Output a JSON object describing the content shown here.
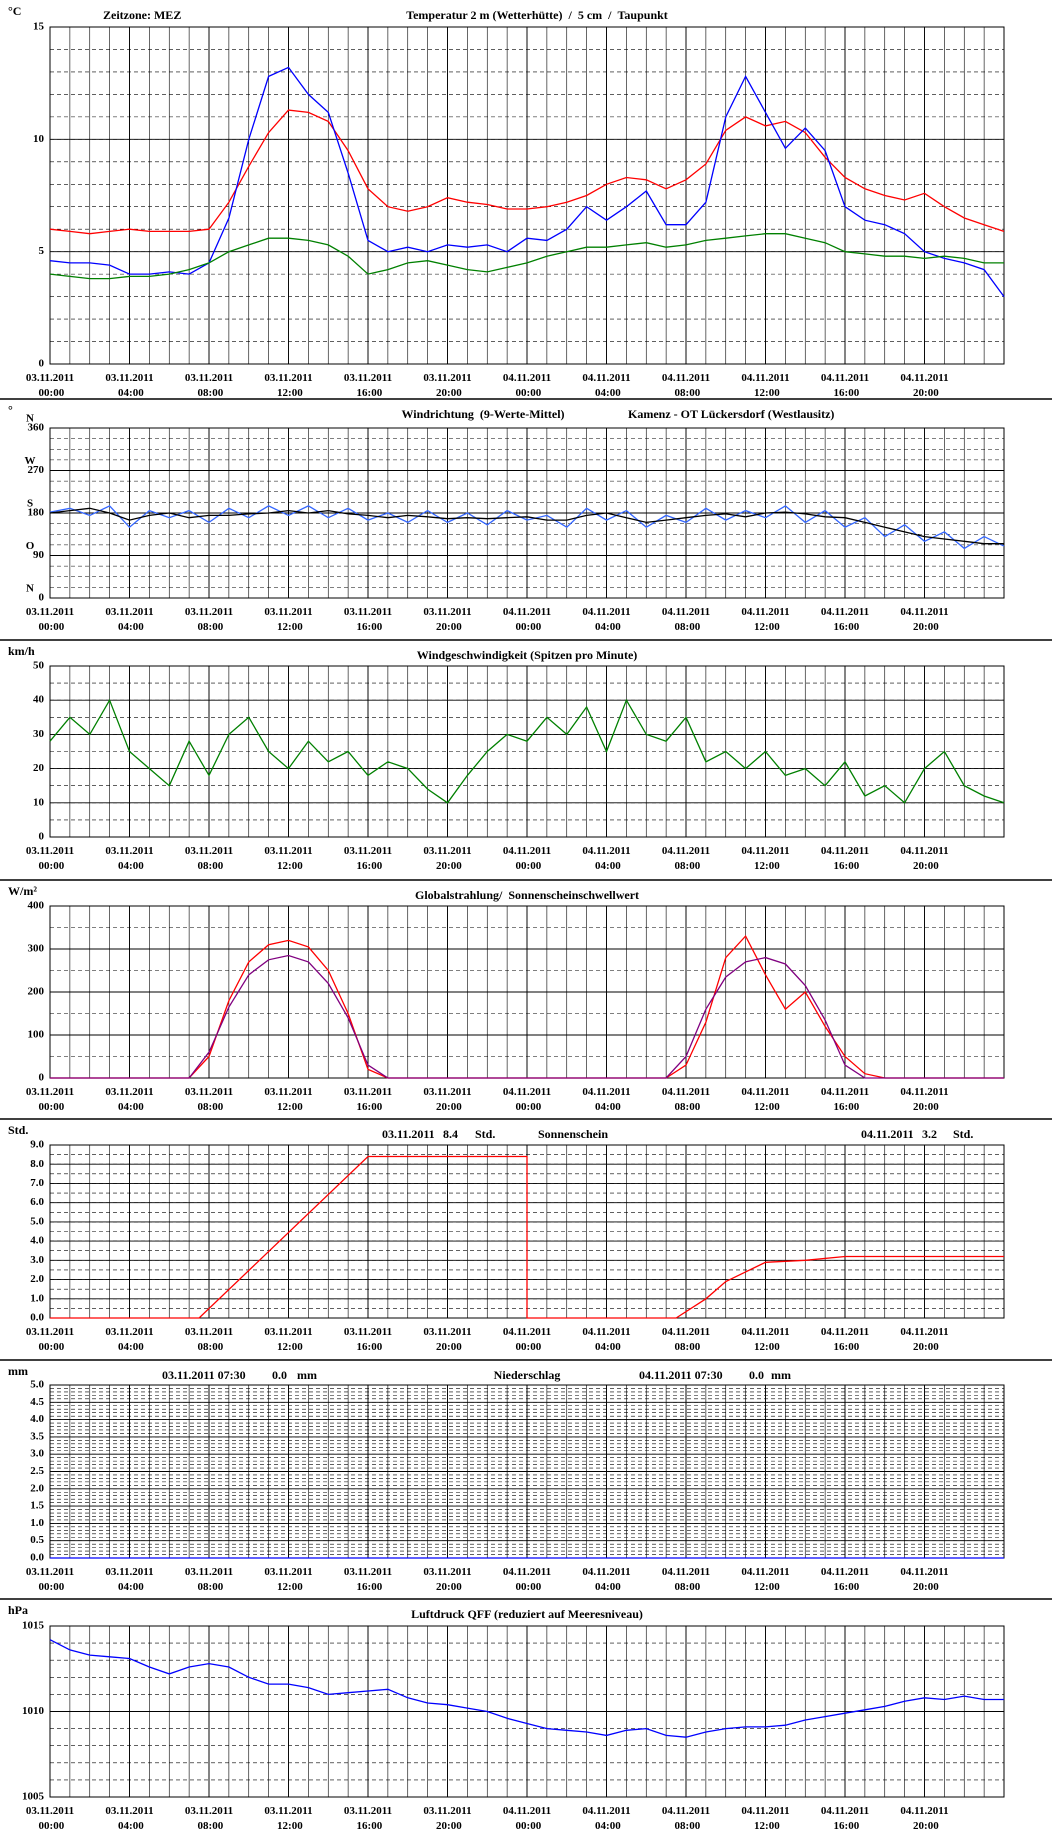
{
  "time_axis": {
    "xlim": [
      0,
      48
    ],
    "xticks": [
      {
        "value": 0,
        "label": "03.11.2011 00:00"
      },
      {
        "value": 4,
        "label": "03.11.2011 04:00"
      },
      {
        "value": 8,
        "label": "03.11.2011 08:00"
      },
      {
        "value": 12,
        "label": "03.11.2011 12:00"
      },
      {
        "value": 16,
        "label": "03.11.2011 16:00"
      },
      {
        "value": 20,
        "label": "03.11.2011 20:00"
      },
      {
        "value": 24,
        "label": "04.11.2011 00:00"
      },
      {
        "value": 28,
        "label": "04.11.2011 04:00"
      },
      {
        "value": 32,
        "label": "04.11.2011 08:00"
      },
      {
        "value": 36,
        "label": "04.11.2011 12:00"
      },
      {
        "value": 40,
        "label": "04.11.2011 16:00"
      },
      {
        "value": 44,
        "label": "04.11.2011 20:00"
      }
    ]
  },
  "chart_data": [
    {
      "type": "line",
      "y_unit": "°C",
      "annotations": [
        "Zeitzone: MEZ"
      ],
      "title_parts": [
        {
          "text": "Temperatur 2 m (Wetterhütte)",
          "color": "#ff0000"
        },
        {
          "text": "/",
          "color": "#000000"
        },
        {
          "text": "5 cm",
          "color": "#0000ff"
        },
        {
          "text": "/",
          "color": "#000000"
        },
        {
          "text": "Taupunkt",
          "color": "#008000"
        }
      ],
      "ylim": [
        0,
        15
      ],
      "yticks": [
        0,
        5,
        10,
        15
      ],
      "minor_step": 1,
      "x": [
        0,
        1,
        2,
        3,
        4,
        5,
        6,
        7,
        8,
        9,
        10,
        11,
        12,
        13,
        14,
        15,
        16,
        17,
        18,
        19,
        20,
        21,
        22,
        23,
        24,
        25,
        26,
        27,
        28,
        29,
        30,
        31,
        32,
        33,
        34,
        35,
        36,
        37,
        38,
        39,
        40,
        41,
        42,
        43,
        44,
        45,
        46,
        47,
        48
      ],
      "series": [
        {
          "color": "#ff0000",
          "values": [
            6.0,
            5.9,
            5.8,
            5.9,
            6.0,
            5.9,
            5.9,
            5.9,
            6.0,
            7.2,
            8.8,
            10.3,
            11.3,
            11.2,
            10.8,
            9.5,
            7.8,
            7.0,
            6.8,
            7.0,
            7.4,
            7.2,
            7.1,
            6.9,
            6.9,
            7.0,
            7.2,
            7.5,
            8.0,
            8.3,
            8.2,
            7.8,
            8.2,
            8.9,
            10.4,
            11.0,
            10.6,
            10.8,
            10.3,
            9.2,
            8.3,
            7.8,
            7.5,
            7.3,
            7.6,
            7.0,
            6.5,
            6.2,
            5.9
          ]
        },
        {
          "color": "#0000ff",
          "values": [
            4.6,
            4.5,
            4.5,
            4.4,
            4.0,
            4.0,
            4.1,
            4.0,
            4.5,
            6.5,
            10.0,
            12.8,
            13.2,
            12.0,
            11.2,
            8.5,
            5.5,
            5.0,
            5.2,
            5.0,
            5.3,
            5.2,
            5.3,
            5.0,
            5.6,
            5.5,
            6.0,
            7.0,
            6.4,
            7.0,
            7.7,
            6.2,
            6.2,
            7.2,
            11.0,
            12.8,
            11.2,
            9.6,
            10.5,
            9.5,
            7.0,
            6.4,
            6.2,
            5.8,
            5.0,
            4.7,
            4.5,
            4.2,
            3.0
          ]
        },
        {
          "color": "#008000",
          "values": [
            4.0,
            3.9,
            3.8,
            3.8,
            3.9,
            3.9,
            4.0,
            4.2,
            4.5,
            5.0,
            5.3,
            5.6,
            5.6,
            5.5,
            5.3,
            4.8,
            4.0,
            4.2,
            4.5,
            4.6,
            4.4,
            4.2,
            4.1,
            4.3,
            4.5,
            4.8,
            5.0,
            5.2,
            5.2,
            5.3,
            5.4,
            5.2,
            5.3,
            5.5,
            5.6,
            5.7,
            5.8,
            5.8,
            5.6,
            5.4,
            5.0,
            4.9,
            4.8,
            4.8,
            4.7,
            4.8,
            4.7,
            4.5,
            4.5
          ]
        }
      ]
    },
    {
      "type": "line",
      "y_unit": "°",
      "annotations": [
        "Kamenz - OT Lückersdorf (Westlausitz)"
      ],
      "title_parts": [
        {
          "text": "Windrichtung",
          "color": "#3366ff"
        },
        {
          "text": "(9-Werte-Mittel)",
          "color": "#000000"
        }
      ],
      "ylim": [
        0,
        360
      ],
      "yticks": [
        0,
        90,
        180,
        270,
        360
      ],
      "minor_step": 22.5,
      "direction_labels": [
        {
          "value": 0,
          "label": "N"
        },
        {
          "value": 90,
          "label": "O"
        },
        {
          "value": 180,
          "label": "S"
        },
        {
          "value": 270,
          "label": "W"
        },
        {
          "value": 360,
          "label": "N"
        }
      ],
      "x": [
        0,
        1,
        2,
        3,
        4,
        5,
        6,
        7,
        8,
        9,
        10,
        11,
        12,
        13,
        14,
        15,
        16,
        17,
        18,
        19,
        20,
        21,
        22,
        23,
        24,
        25,
        26,
        27,
        28,
        29,
        30,
        31,
        32,
        33,
        34,
        35,
        36,
        37,
        38,
        39,
        40,
        41,
        42,
        43,
        44,
        45,
        46,
        47,
        48
      ],
      "series": [
        {
          "color": "#3366ff",
          "values": [
            182,
            190,
            175,
            195,
            150,
            185,
            170,
            185,
            160,
            190,
            170,
            195,
            175,
            195,
            170,
            190,
            165,
            180,
            160,
            185,
            160,
            180,
            155,
            185,
            165,
            175,
            150,
            190,
            165,
            185,
            150,
            175,
            160,
            190,
            165,
            185,
            170,
            195,
            160,
            185,
            150,
            170,
            130,
            155,
            120,
            140,
            105,
            130,
            110
          ]
        },
        {
          "color": "#000000",
          "values": [
            180,
            185,
            190,
            180,
            165,
            175,
            180,
            170,
            175,
            175,
            178,
            180,
            185,
            180,
            185,
            178,
            175,
            170,
            175,
            172,
            168,
            170,
            168,
            170,
            172,
            165,
            165,
            175,
            180,
            170,
            160,
            165,
            170,
            175,
            178,
            172,
            180,
            182,
            178,
            172,
            170,
            160,
            150,
            140,
            130,
            125,
            120,
            115,
            115
          ]
        }
      ]
    },
    {
      "type": "line",
      "y_unit": "km/h",
      "title_parts": [
        {
          "text": "Windgeschwindigkeit (Spitzen pro Minute)",
          "color": "#000000"
        }
      ],
      "ylim": [
        0,
        50
      ],
      "yticks": [
        0,
        10,
        20,
        30,
        40,
        50
      ],
      "minor_step": 5,
      "x": [
        0,
        1,
        2,
        3,
        4,
        5,
        6,
        7,
        8,
        9,
        10,
        11,
        12,
        13,
        14,
        15,
        16,
        17,
        18,
        19,
        20,
        21,
        22,
        23,
        24,
        25,
        26,
        27,
        28,
        29,
        30,
        31,
        32,
        33,
        34,
        35,
        36,
        37,
        38,
        39,
        40,
        41,
        42,
        43,
        44,
        45,
        46,
        47,
        48
      ],
      "series": [
        {
          "color": "#008000",
          "values": [
            28,
            35,
            30,
            40,
            25,
            20,
            15,
            28,
            18,
            30,
            35,
            25,
            20,
            28,
            22,
            25,
            18,
            22,
            20,
            14,
            10,
            18,
            25,
            30,
            28,
            35,
            30,
            38,
            25,
            40,
            30,
            28,
            35,
            22,
            25,
            20,
            25,
            18,
            20,
            15,
            22,
            12,
            15,
            10,
            20,
            25,
            15,
            12,
            10
          ]
        }
      ]
    },
    {
      "type": "line",
      "y_unit": "W/m²",
      "title_parts": [
        {
          "text": "Globalstrahlung/",
          "color": "#000000"
        },
        {
          "text": "Sonnenscheinschwellwert",
          "color": "#800080"
        }
      ],
      "ylim": [
        0,
        400
      ],
      "yticks": [
        0,
        100,
        200,
        300,
        400
      ],
      "minor_step": 50,
      "x": [
        0,
        1,
        2,
        3,
        4,
        5,
        6,
        7,
        8,
        9,
        10,
        11,
        12,
        13,
        14,
        15,
        16,
        17,
        18,
        19,
        20,
        21,
        22,
        23,
        24,
        25,
        26,
        27,
        28,
        29,
        30,
        31,
        32,
        33,
        34,
        35,
        36,
        37,
        38,
        39,
        40,
        41,
        42,
        43,
        44,
        45,
        46,
        47,
        48
      ],
      "series": [
        {
          "color": "#ff0000",
          "values": [
            0,
            0,
            0,
            0,
            0,
            0,
            0,
            0,
            50,
            180,
            270,
            310,
            320,
            305,
            250,
            150,
            20,
            0,
            0,
            0,
            0,
            0,
            0,
            0,
            0,
            0,
            0,
            0,
            0,
            0,
            0,
            0,
            30,
            130,
            280,
            330,
            240,
            160,
            200,
            120,
            50,
            10,
            0,
            0,
            0,
            0,
            0,
            0,
            0
          ]
        },
        {
          "color": "#800080",
          "values": [
            0,
            0,
            0,
            0,
            0,
            0,
            0,
            0,
            60,
            165,
            240,
            275,
            285,
            270,
            220,
            140,
            30,
            0,
            0,
            0,
            0,
            0,
            0,
            0,
            0,
            0,
            0,
            0,
            0,
            0,
            0,
            0,
            50,
            160,
            235,
            270,
            280,
            265,
            215,
            135,
            30,
            0,
            0,
            0,
            0,
            0,
            0,
            0,
            0
          ]
        }
      ]
    },
    {
      "type": "line",
      "y_unit": "Std.",
      "annotations": [
        "03.11.2011",
        "8.4",
        "Std.",
        "04.11.2011",
        "3.2",
        "Std."
      ],
      "title_parts": [
        {
          "text": "Sonnenschein",
          "color": "#000000"
        }
      ],
      "ylim": [
        0,
        9
      ],
      "minor_step": 0.5,
      "yticks": [
        {
          "value": 0,
          "label": "0.0"
        },
        {
          "value": 1,
          "label": "1.0"
        },
        {
          "value": 2,
          "label": "2.0"
        },
        {
          "value": 3,
          "label": "3.0"
        },
        {
          "value": 4,
          "label": "4.0"
        },
        {
          "value": 5,
          "label": "5.0"
        },
        {
          "value": 6,
          "label": "6.0"
        },
        {
          "value": 7,
          "label": "7.0"
        },
        {
          "value": 8,
          "label": "8.0"
        },
        {
          "value": 9,
          "label": "9.0"
        }
      ],
      "x": [
        0,
        7.5,
        16,
        24,
        24,
        31.5,
        33,
        34,
        35,
        36,
        38,
        40,
        48
      ],
      "series": [
        {
          "color": "#ff0000",
          "values": [
            0,
            0,
            8.4,
            8.4,
            0,
            0,
            1.0,
            1.9,
            2.4,
            2.9,
            3.0,
            3.2,
            3.2
          ]
        }
      ]
    },
    {
      "type": "line",
      "y_unit": "mm",
      "annotations": [
        "03.11.2011 07:30",
        "0.0",
        "mm",
        "04.11.2011 07:30",
        "0.0",
        "mm"
      ],
      "title_parts": [
        {
          "text": "Niederschlag",
          "color": "#000000"
        }
      ],
      "ylim": [
        0,
        5
      ],
      "minor_step": 0.1,
      "yticks": [
        {
          "value": 0,
          "label": "0.0"
        },
        {
          "value": 0.5,
          "label": "0.5"
        },
        {
          "value": 1,
          "label": "1.0"
        },
        {
          "value": 1.5,
          "label": "1.5"
        },
        {
          "value": 2,
          "label": "2.0"
        },
        {
          "value": 2.5,
          "label": "2.5"
        },
        {
          "value": 3,
          "label": "3.0"
        },
        {
          "value": 3.5,
          "label": "3.5"
        },
        {
          "value": 4,
          "label": "4.0"
        },
        {
          "value": 4.5,
          "label": "4.5"
        },
        {
          "value": 5,
          "label": "5.0"
        }
      ],
      "x": [
        0,
        48
      ],
      "series": [
        {
          "color": "#0000ff",
          "values": [
            0,
            0
          ]
        }
      ]
    },
    {
      "type": "line",
      "y_unit": "hPa",
      "title_parts": [
        {
          "text": "Luftdruck QFF (reduziert auf Meeresniveau)",
          "color": "#000000"
        }
      ],
      "ylim": [
        1005,
        1015
      ],
      "yticks": [
        1005,
        1010,
        1015
      ],
      "minor_step": 1,
      "x": [
        0,
        1,
        2,
        3,
        4,
        5,
        6,
        7,
        8,
        9,
        10,
        11,
        12,
        13,
        14,
        15,
        16,
        17,
        18,
        19,
        20,
        21,
        22,
        23,
        24,
        25,
        26,
        27,
        28,
        29,
        30,
        31,
        32,
        33,
        34,
        35,
        36,
        37,
        38,
        39,
        40,
        41,
        42,
        43,
        44,
        45,
        46,
        47,
        48
      ],
      "series": [
        {
          "color": "#0000ff",
          "values": [
            1014.2,
            1013.6,
            1013.3,
            1013.2,
            1013.1,
            1012.6,
            1012.2,
            1012.6,
            1012.8,
            1012.6,
            1012.0,
            1011.6,
            1011.6,
            1011.4,
            1011.0,
            1011.1,
            1011.2,
            1011.3,
            1010.8,
            1010.5,
            1010.4,
            1010.2,
            1010.0,
            1009.6,
            1009.3,
            1009.0,
            1008.9,
            1008.8,
            1008.6,
            1008.9,
            1009.0,
            1008.6,
            1008.5,
            1008.8,
            1009.0,
            1009.1,
            1009.1,
            1009.2,
            1009.5,
            1009.7,
            1009.9,
            1010.1,
            1010.3,
            1010.6,
            1010.8,
            1010.7,
            1010.9,
            1010.7,
            1010.7
          ]
        }
      ]
    }
  ]
}
